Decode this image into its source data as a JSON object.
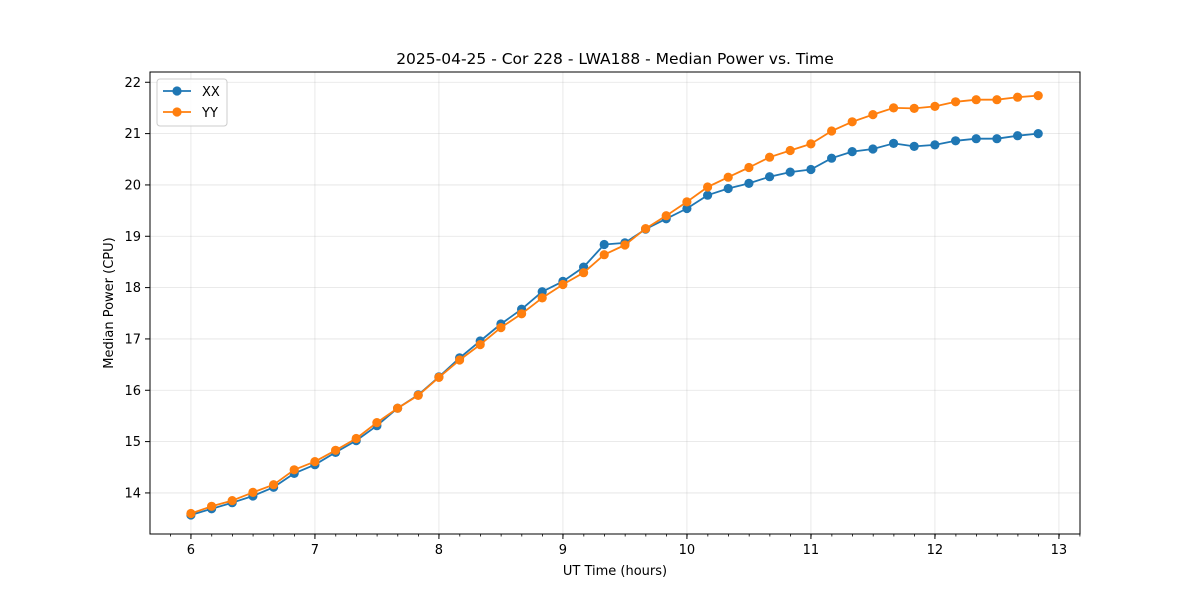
{
  "chart_data": {
    "type": "line",
    "title": "2025-04-25 - Cor 228 - LWA188 - Median Power vs. Time",
    "xlabel": "UT Time (hours)",
    "ylabel": "Median Power (CPU)",
    "xlim": [
      5.67,
      13.17
    ],
    "ylim": [
      13.2,
      22.2
    ],
    "xticks": [
      "6",
      "7",
      "8",
      "9",
      "10",
      "11",
      "12",
      "13"
    ],
    "yticks": [
      "14",
      "15",
      "16",
      "17",
      "18",
      "19",
      "20",
      "21",
      "22"
    ],
    "x_minor_step": 0.1667,
    "grid": true,
    "legend_position": "top-left",
    "x": [
      6.0,
      6.167,
      6.333,
      6.5,
      6.667,
      6.833,
      7.0,
      7.167,
      7.333,
      7.5,
      7.667,
      7.833,
      8.0,
      8.167,
      8.333,
      8.5,
      8.667,
      8.833,
      9.0,
      9.167,
      9.333,
      9.5,
      9.667,
      9.833,
      10.0,
      10.167,
      10.333,
      10.5,
      10.667,
      10.833,
      11.0,
      11.167,
      11.333,
      11.5,
      11.667,
      11.833,
      12.0,
      12.167,
      12.333,
      12.5,
      12.667,
      12.833
    ],
    "series": [
      {
        "name": "XX",
        "color": "#1f77b4",
        "values": [
          13.57,
          13.69,
          13.81,
          13.94,
          14.11,
          14.38,
          14.55,
          14.79,
          15.02,
          15.31,
          15.65,
          15.91,
          16.26,
          16.63,
          16.96,
          17.29,
          17.58,
          17.92,
          18.12,
          18.4,
          18.84,
          18.87,
          19.14,
          19.34,
          19.54,
          19.8,
          19.93,
          20.03,
          20.16,
          20.25,
          20.3,
          20.52,
          20.65,
          20.7,
          20.81,
          20.75,
          20.78,
          20.86,
          20.9,
          20.9,
          20.96,
          21.0
        ]
      },
      {
        "name": "YY",
        "color": "#ff7f0e",
        "values": [
          13.6,
          13.74,
          13.85,
          14.01,
          14.16,
          14.45,
          14.61,
          14.83,
          15.06,
          15.37,
          15.65,
          15.9,
          16.25,
          16.59,
          16.89,
          17.22,
          17.49,
          17.8,
          18.06,
          18.29,
          18.64,
          18.83,
          19.15,
          19.4,
          19.67,
          19.96,
          20.15,
          20.34,
          20.54,
          20.67,
          20.8,
          21.05,
          21.23,
          21.37,
          21.5,
          21.49,
          21.53,
          21.62,
          21.66,
          21.66,
          21.71,
          21.74
        ]
      }
    ]
  }
}
